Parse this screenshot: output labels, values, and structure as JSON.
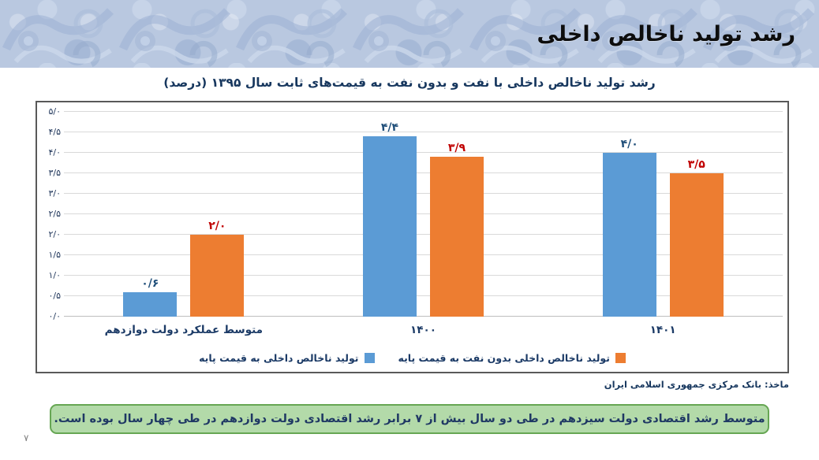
{
  "header": {
    "title": "رشد تولید ناخالص داخلی"
  },
  "chart_data": {
    "type": "bar",
    "title": "رشد تولید ناخالص داخلی با نفت و بدون نفت به قیمت‌های ثابت سال ۱۳۹۵ (درصد)",
    "categories": [
      "متوسط عملکرد دولت دوازدهم",
      "۱۴۰۰",
      "۱۴۰۱"
    ],
    "series": [
      {
        "name": "تولید ناخالص داخلی به قیمت پایه",
        "color": "#5B9BD5",
        "label_color": "#1F4E79",
        "values": [
          0.6,
          4.4,
          4.0
        ],
        "value_labels": [
          "۰/۶",
          "۴/۴",
          "۴/۰"
        ]
      },
      {
        "name": "تولید ناخالص داخلی بدون نفت به قیمت پایه",
        "color": "#ED7D31",
        "label_color": "#C00000",
        "values": [
          2.0,
          3.9,
          3.5
        ],
        "value_labels": [
          "۲/۰",
          "۳/۹",
          "۳/۵"
        ]
      }
    ],
    "ylim": [
      0,
      5
    ],
    "ytick_step": 0.5,
    "ytick_labels": [
      "۰/۰",
      "۰/۵",
      "۱/۰",
      "۱/۵",
      "۲/۰",
      "۲/۵",
      "۳/۰",
      "۳/۵",
      "۴/۰",
      "۴/۵",
      "۵/۰"
    ],
    "grid": true,
    "legend_position": "bottom"
  },
  "source": {
    "text": "ماخذ: بانک مرکزی جمهوری اسلامی ایران"
  },
  "callout": {
    "text": "متوسط رشد اقتصادی دولت سیزدهم در طی دو سال بیش از ۷ برابر رشد اقتصادی دولت دوازدهم در طی چهار سال بوده است.",
    "bg": "#B3DAA9",
    "border": "#66A653",
    "text_color": "#1F3864"
  },
  "page": {
    "number": "۷"
  }
}
